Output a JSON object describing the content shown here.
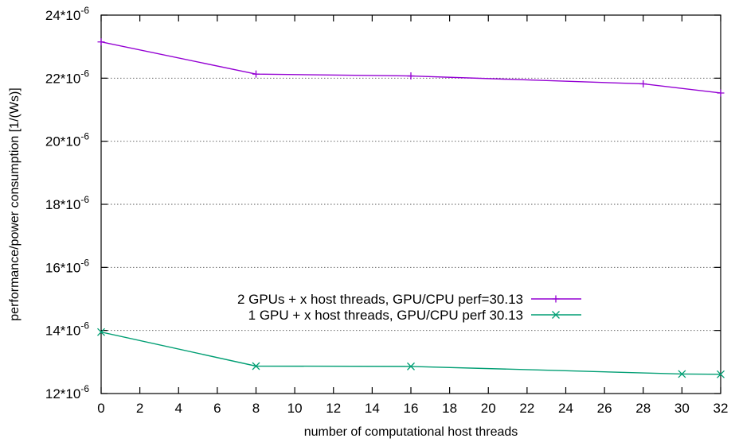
{
  "chart_data": {
    "type": "line",
    "xlabel": "number of computational host threads",
    "ylabel": "performance/power consumption [1/(Ws)]",
    "xlim": [
      0,
      32
    ],
    "ylim": [
      12,
      24
    ],
    "y_unit_exponent": -6,
    "x_ticks": [
      0,
      2,
      4,
      6,
      8,
      10,
      12,
      14,
      16,
      18,
      20,
      22,
      24,
      26,
      28,
      30,
      32
    ],
    "y_ticks": [
      {
        "value": 12,
        "mantissa": "12*10",
        "exp": "-6"
      },
      {
        "value": 14,
        "mantissa": "14*10",
        "exp": "-6"
      },
      {
        "value": 16,
        "mantissa": "16*10",
        "exp": "-6"
      },
      {
        "value": 18,
        "mantissa": "18*10",
        "exp": "-6"
      },
      {
        "value": 20,
        "mantissa": "20*10",
        "exp": "-6"
      },
      {
        "value": 22,
        "mantissa": "22*10",
        "exp": "-6"
      },
      {
        "value": 24,
        "mantissa": "24*10",
        "exp": "-6"
      }
    ],
    "grid": "horizontal dotted at y ticks",
    "legend_placement": "center-left",
    "series": [
      {
        "name": "2 GPUs + x host threads, GPU/CPU perf=30.13",
        "color": "#9400d3",
        "marker": "plus",
        "x": [
          0,
          8,
          16,
          28,
          32
        ],
        "y": [
          23.15,
          22.13,
          22.07,
          21.82,
          21.53
        ]
      },
      {
        "name": "1 GPU + x host threads, GPU/CPU perf 30.13",
        "color": "#009e73",
        "marker": "cross",
        "x": [
          0,
          8,
          16,
          30,
          32
        ],
        "y": [
          13.95,
          12.87,
          12.86,
          12.62,
          12.61
        ]
      }
    ]
  }
}
